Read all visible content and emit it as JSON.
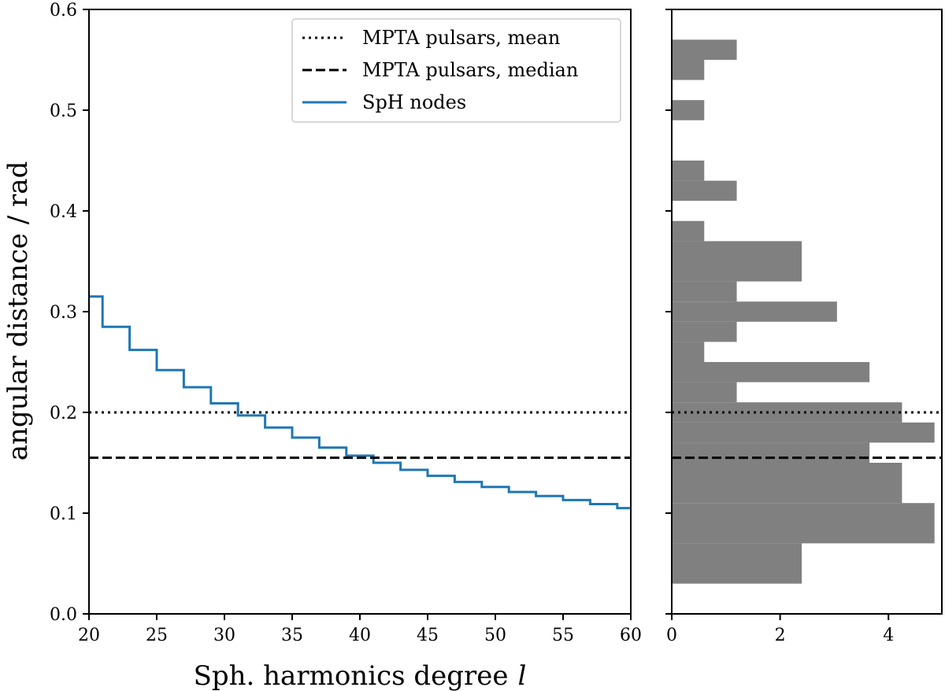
{
  "chart_data": [
    {
      "type": "line",
      "xlabel": "Sph. harmonics degree",
      "xlabel_italic": "l",
      "ylabel": "angular distance / rad",
      "xlim": [
        20,
        60
      ],
      "ylim": [
        0.0,
        0.6
      ],
      "xticks": [
        "20",
        "25",
        "30",
        "35",
        "40",
        "45",
        "50",
        "55",
        "60"
      ],
      "yticks": [
        "0.0",
        "0.1",
        "0.2",
        "0.3",
        "0.4",
        "0.5",
        "0.6"
      ],
      "series": [
        {
          "name": "SpH nodes",
          "color": "#1f77b4",
          "style": "step",
          "x": [
            20,
            21,
            22,
            23,
            24,
            25,
            26,
            27,
            28,
            29,
            30,
            31,
            32,
            33,
            34,
            35,
            36,
            37,
            38,
            39,
            40,
            41,
            42,
            43,
            44,
            45,
            46,
            47,
            48,
            49,
            50,
            51,
            52,
            53,
            54,
            55,
            56,
            57,
            58,
            59,
            60
          ],
          "values": [
            0.315,
            0.285,
            0.285,
            0.262,
            0.262,
            0.242,
            0.242,
            0.225,
            0.225,
            0.209,
            0.209,
            0.197,
            0.197,
            0.185,
            0.185,
            0.175,
            0.175,
            0.165,
            0.165,
            0.157,
            0.157,
            0.15,
            0.15,
            0.143,
            0.143,
            0.137,
            0.137,
            0.131,
            0.131,
            0.126,
            0.126,
            0.121,
            0.121,
            0.117,
            0.117,
            0.113,
            0.113,
            0.109,
            0.109,
            0.105,
            0.105
          ]
        }
      ],
      "hlines": [
        {
          "name": "MPTA pulsars, mean",
          "y": 0.2,
          "style": "dotted",
          "color": "#000000"
        },
        {
          "name": "MPTA pulsars, median",
          "y": 0.155,
          "style": "dashed",
          "color": "#000000"
        }
      ],
      "legend": {
        "placement": "top-right",
        "entries": [
          "MPTA pulsars, mean",
          "MPTA pulsars, median",
          "SpH nodes"
        ]
      }
    },
    {
      "type": "bar",
      "orientation": "horizontal",
      "bar_color": "#808080",
      "xlim": [
        0,
        5
      ],
      "ylim": [
        0.0,
        0.6
      ],
      "xticks": [
        "0",
        "2",
        "4"
      ],
      "bin_edges": [
        0.03,
        0.07,
        0.11,
        0.15,
        0.17,
        0.19,
        0.21,
        0.23,
        0.25,
        0.27,
        0.29,
        0.31,
        0.33,
        0.37,
        0.39,
        0.41,
        0.43,
        0.45,
        0.49,
        0.51,
        0.53,
        0.55,
        0.57
      ],
      "counts": [
        2.4,
        4.85,
        4.25,
        3.65,
        4.85,
        4.25,
        1.2,
        3.65,
        0.6,
        1.2,
        3.05,
        1.2,
        2.4,
        0.6,
        0,
        1.2,
        0.6,
        0,
        0.6,
        0,
        0.6,
        1.2
      ],
      "hlines": [
        {
          "name": "MPTA pulsars, mean",
          "y": 0.2,
          "style": "dotted",
          "color": "#000000"
        },
        {
          "name": "MPTA pulsars, median",
          "y": 0.155,
          "style": "dashed",
          "color": "#000000"
        }
      ]
    }
  ]
}
